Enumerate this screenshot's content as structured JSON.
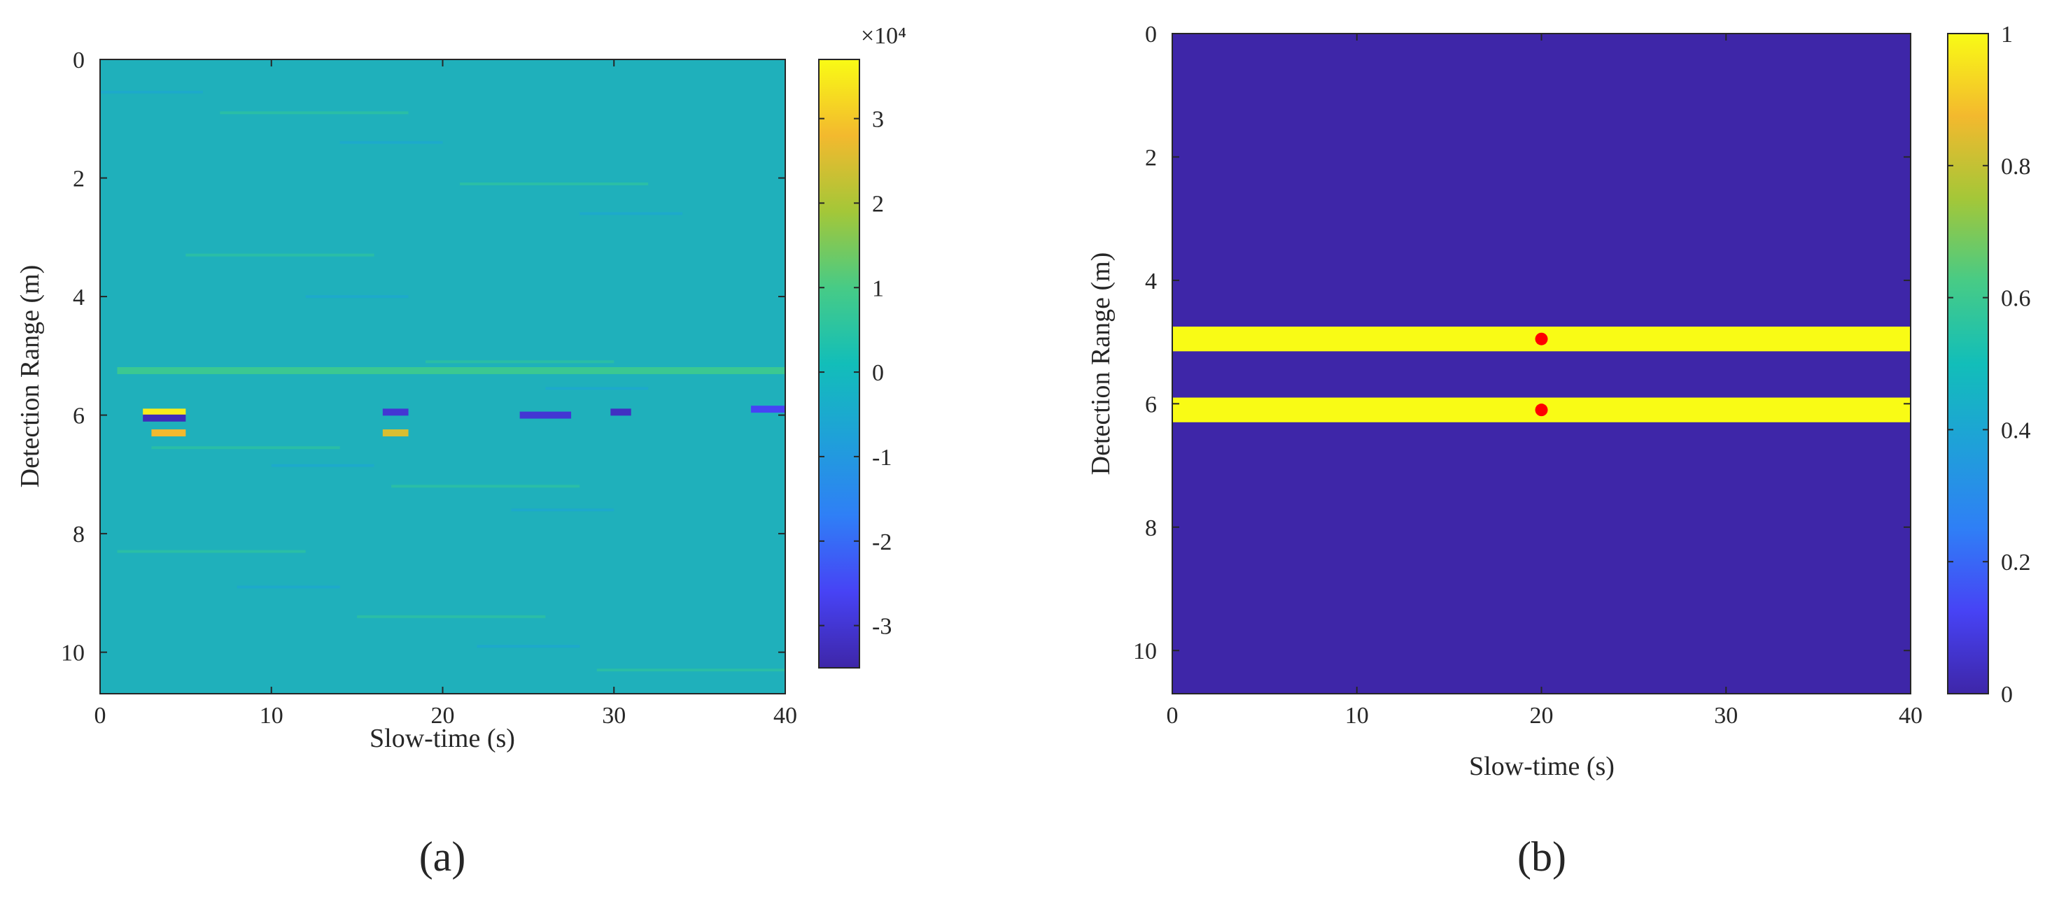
{
  "figure": {
    "panel_a_label": "(a)",
    "panel_b_label": "(b)"
  },
  "chart_data": [
    {
      "type": "heatmap",
      "xlabel": "Slow-time (s)",
      "ylabel": "Detection Range (m)",
      "xlim": [
        0,
        40
      ],
      "ylim": [
        0,
        10.7
      ],
      "y_reversed": true,
      "x_ticks": [
        "0",
        "10",
        "20",
        "30",
        "40"
      ],
      "y_ticks": [
        "0",
        "2",
        "4",
        "6",
        "8",
        "10"
      ],
      "colorbar": {
        "range": [
          -3.5,
          3.7
        ],
        "exponent_label": "×10⁴",
        "ticks": [
          "3",
          "2",
          "1",
          "0",
          "-1",
          "-2",
          "-3"
        ],
        "colormap": "parula"
      },
      "background_value": 0,
      "features": [
        {
          "range_m": 5.25,
          "t_start": 1,
          "t_end": 40,
          "value": 0.8
        },
        {
          "range_m": 5.95,
          "t_start": 2.5,
          "t_end": 5,
          "value": 3.5
        },
        {
          "range_m": 6.05,
          "t_start": 2.5,
          "t_end": 5,
          "value": -3.3
        },
        {
          "range_m": 6.3,
          "t_start": 3,
          "t_end": 5,
          "value": 2.8
        },
        {
          "range_m": 5.95,
          "t_start": 16.5,
          "t_end": 18,
          "value": -3.0
        },
        {
          "range_m": 6.3,
          "t_start": 16.5,
          "t_end": 18,
          "value": 2.5
        },
        {
          "range_m": 6.0,
          "t_start": 24.5,
          "t_end": 27.5,
          "value": -3.0
        },
        {
          "range_m": 5.95,
          "t_start": 29.8,
          "t_end": 31,
          "value": -3.2
        },
        {
          "range_m": 5.9,
          "t_start": 38,
          "t_end": 40,
          "value": -2.6
        }
      ]
    },
    {
      "type": "heatmap",
      "xlabel": "Slow-time (s)",
      "ylabel": "Detection Range (m)",
      "xlim": [
        0,
        40
      ],
      "ylim": [
        0,
        10.7
      ],
      "y_reversed": true,
      "x_ticks": [
        "0",
        "10",
        "20",
        "30",
        "40"
      ],
      "y_ticks": [
        "0",
        "2",
        "4",
        "6",
        "8",
        "10"
      ],
      "colorbar": {
        "range": [
          0,
          1
        ],
        "ticks": [
          "1",
          "0.8",
          "0.6",
          "0.4",
          "0.2",
          "0"
        ],
        "colormap": "parula"
      },
      "background_value": 0,
      "bands": [
        {
          "range_start_m": 4.75,
          "range_end_m": 5.15,
          "value": 1
        },
        {
          "range_start_m": 5.9,
          "range_end_m": 6.3,
          "value": 1
        }
      ],
      "points": [
        {
          "x": 20,
          "y": 4.95,
          "color": "#ff0000"
        },
        {
          "x": 20,
          "y": 6.1,
          "color": "#ff0000"
        }
      ]
    }
  ]
}
